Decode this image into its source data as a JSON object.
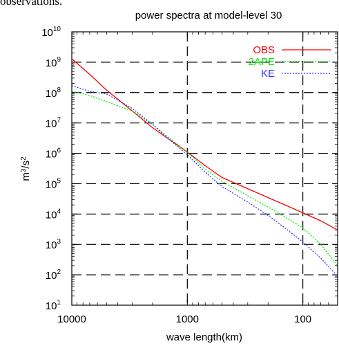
{
  "page": {
    "clipped_text": "observations."
  },
  "chart_data": {
    "type": "line",
    "title": "power spectra at model-level 30",
    "xlabel": "wave length(km)",
    "ylabel": "m3/s2",
    "ylabel_parts": {
      "base": "m",
      "exp1": "3",
      "sep": "/s",
      "exp2": "2"
    },
    "x_scale": "log",
    "x_reversed": true,
    "y_scale": "log",
    "xlim": [
      10000,
      50
    ],
    "ylim": [
      10,
      10000000000
    ],
    "x_ticks": [
      {
        "value": 10000,
        "label": "10000"
      },
      {
        "value": 1000,
        "label": "1000"
      },
      {
        "value": 100,
        "label": "100"
      }
    ],
    "y_ticks": [
      {
        "value": 10,
        "base": "10",
        "exp": "1"
      },
      {
        "value": 100,
        "base": "10",
        "exp": "2"
      },
      {
        "value": 1000,
        "base": "10",
        "exp": "3"
      },
      {
        "value": 10000,
        "base": "10",
        "exp": "4"
      },
      {
        "value": 100000,
        "base": "10",
        "exp": "5"
      },
      {
        "value": 1000000,
        "base": "10",
        "exp": "6"
      },
      {
        "value": 10000000,
        "base": "10",
        "exp": "7"
      },
      {
        "value": 100000000,
        "base": "10",
        "exp": "8"
      },
      {
        "value": 1000000000,
        "base": "10",
        "exp": "9"
      },
      {
        "value": 10000000000,
        "base": "10",
        "exp": "10"
      }
    ],
    "grid": true,
    "legend_position": "top-right",
    "series": [
      {
        "name": "OBS",
        "color": "#ff0000",
        "dash": "solid",
        "points": [
          [
            10000,
            1300000000
          ],
          [
            7000,
            400000000
          ],
          [
            5000,
            120000000
          ],
          [
            3000,
            25000000
          ],
          [
            2000,
            7000000
          ],
          [
            1000,
            1100000
          ],
          [
            700,
            390000
          ],
          [
            500,
            160000
          ],
          [
            400,
            110000
          ],
          [
            200,
            35000
          ],
          [
            100,
            11000
          ],
          [
            70,
            6000
          ],
          [
            50,
            3000
          ]
        ]
      },
      {
        "name": "2APE",
        "color": "#00ee00",
        "dash": "dotted",
        "points": [
          [
            10000,
            110000000
          ],
          [
            7000,
            80000000
          ],
          [
            5000,
            50000000
          ],
          [
            3000,
            25000000
          ],
          [
            2000,
            9000000
          ],
          [
            1500,
            3700000
          ],
          [
            1000,
            1100000
          ],
          [
            700,
            300000
          ],
          [
            500,
            120000
          ],
          [
            300,
            40000
          ],
          [
            200,
            17000
          ],
          [
            150,
            9000
          ],
          [
            100,
            3500
          ],
          [
            70,
            1000
          ],
          [
            50,
            200
          ]
        ]
      },
      {
        "name": "KE",
        "color": "#3333ff",
        "dash": "dotted",
        "points": [
          [
            10000,
            170000000
          ],
          [
            7000,
            110000000
          ],
          [
            5000,
            90000000
          ],
          [
            3000,
            30000000
          ],
          [
            2000,
            9000000
          ],
          [
            1500,
            3300000
          ],
          [
            1000,
            900000
          ],
          [
            700,
            240000
          ],
          [
            500,
            80000
          ],
          [
            300,
            25000
          ],
          [
            200,
            9000
          ],
          [
            150,
            4000
          ],
          [
            100,
            1200
          ],
          [
            70,
            350
          ],
          [
            50,
            90
          ]
        ]
      }
    ]
  }
}
